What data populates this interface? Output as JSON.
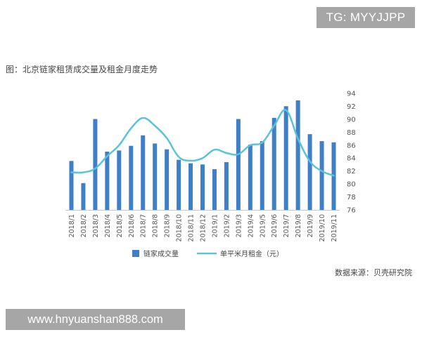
{
  "watermark_top": "TG: MYYJJPP",
  "watermark_bottom": "www.hnyuanshan888.com",
  "source_note": "数据来源：贝壳研究院",
  "chart_data": {
    "type": "bar-line",
    "title": "图：北京链家租赁成交量及租金月度走势",
    "categories": [
      "2018/1",
      "2018/2",
      "2018/3",
      "2018/4",
      "2018/5",
      "2018/6",
      "2018/7",
      "2018/8",
      "2018/9",
      "2018/10",
      "2018/11",
      "2018/12",
      "2019/1",
      "2019/2",
      "2019/3",
      "2019/4",
      "2019/5",
      "2019/6",
      "2019/7",
      "2019/8",
      "2019/9",
      "2019/10",
      "2019/11"
    ],
    "series": [
      {
        "name": "链家成交量",
        "kind": "bar",
        "color": "#3f7fc7",
        "values": [
          0.42,
          0.23,
          0.78,
          0.5,
          0.51,
          0.55,
          0.64,
          0.57,
          0.52,
          0.43,
          0.4,
          0.39,
          0.35,
          0.41,
          0.78,
          0.56,
          0.59,
          0.79,
          0.89,
          0.94,
          0.65,
          0.59,
          0.58
        ]
      },
      {
        "name": "单平米月租金（元）",
        "kind": "line",
        "color": "#5bc3d9",
        "values": [
          81.8,
          81.8,
          82.4,
          84.3,
          86.0,
          88.6,
          90.2,
          89.0,
          87.1,
          84.2,
          83.6,
          84.0,
          85.3,
          84.8,
          84.6,
          86.0,
          86.4,
          89.0,
          91.4,
          87.0,
          83.5,
          82.0,
          81.3
        ]
      }
    ],
    "y_right": {
      "min": 76,
      "max": 94,
      "step": 2,
      "ticks": [
        "76",
        "78",
        "80",
        "82",
        "84",
        "86",
        "88",
        "90",
        "92",
        "94"
      ]
    },
    "legend_position": "bottom-center",
    "grid": false
  }
}
